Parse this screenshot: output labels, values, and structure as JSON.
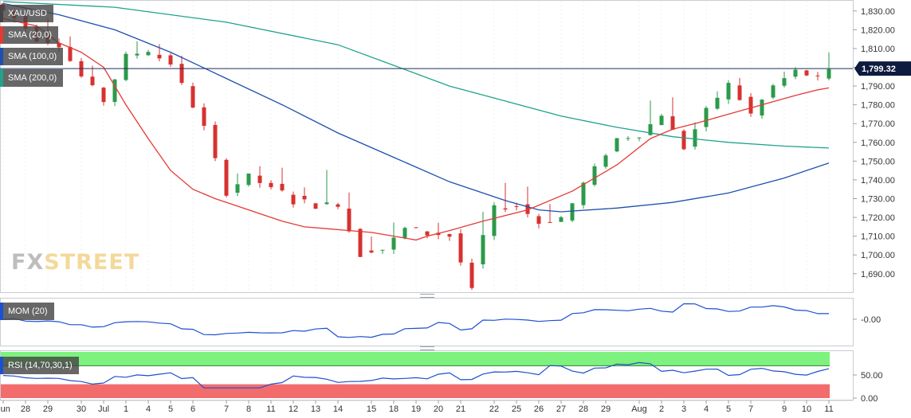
{
  "symbol": "XAU/USD",
  "indicators": {
    "sma20": {
      "label": "SMA (20,0)",
      "color": "#e53935"
    },
    "sma100": {
      "label": "SMA (100,0)",
      "color": "#1e4fb0"
    },
    "sma200": {
      "label": "SMA (200,0)",
      "color": "#1fa38a"
    },
    "mom": {
      "label": "MOM (20)",
      "color": "#1c4fd1"
    },
    "rsi": {
      "label": "RSI (14,70,30,1)",
      "color": "#1c4fd1"
    }
  },
  "current_price": "1,799.32",
  "watermark": {
    "part1": "FX",
    "part2": "STREET"
  },
  "chart_data": {
    "type": "candlestick",
    "price_axis": {
      "ylim": [
        1681,
        1835
      ],
      "ticks": [
        1690,
        1700,
        1710,
        1720,
        1730,
        1740,
        1750,
        1760,
        1770,
        1780,
        1790,
        1800,
        1810,
        1820,
        1830
      ],
      "tick_labels": [
        "1,690.00",
        "1,700.00",
        "1,710.00",
        "1,720.00",
        "1,730.00",
        "1,740.00",
        "1,750.00",
        "1,760.00",
        "1,770.00",
        "1,780.00",
        "1,790.00",
        "1,800.00",
        "1,810.00",
        "1,820.00",
        "1,830.00"
      ]
    },
    "current_price": 1799.32,
    "x_labels": [
      "Jun",
      "28",
      "29",
      "30",
      "Jul",
      "1",
      "4",
      "5",
      "6",
      "7",
      "8",
      "11",
      "12",
      "13",
      "14",
      "15",
      "18",
      "19",
      "20",
      "21",
      "22",
      "25",
      "26",
      "27",
      "28",
      "29",
      "Aug",
      "2",
      "3",
      "4",
      "5",
      "7",
      "9",
      "10",
      "11"
    ],
    "days": [
      {
        "o": 1834,
        "h": 1835,
        "c": 1826
      },
      {
        "o": 1827,
        "h": 1831,
        "c": 1815
      },
      {
        "o": 1816,
        "h": 1826,
        "c": 1812
      },
      {
        "o": 1812,
        "h": 1816,
        "c": 1795
      },
      {
        "o": 1796,
        "h": 1802,
        "c": 1782
      },
      {
        "o": 1782,
        "h": 1808,
        "c": 1806
      },
      {
        "o": 1806,
        "h": 1815,
        "c": 1809
      },
      {
        "o": 1808,
        "h": 1813,
        "c": 1802
      },
      {
        "o": 1802,
        "h": 1806,
        "c": 1768
      },
      {
        "o": 1768,
        "h": 1770,
        "c": 1733
      },
      {
        "o": 1734,
        "h": 1747,
        "c": 1742
      },
      {
        "o": 1742,
        "h": 1748,
        "c": 1735
      },
      {
        "o": 1739,
        "h": 1747,
        "c": 1728
      },
      {
        "o": 1731,
        "h": 1736,
        "c": 1726
      },
      {
        "o": 1727,
        "h": 1746,
        "c": 1727
      },
      {
        "o": 1726,
        "h": 1736,
        "c": 1700
      },
      {
        "o": 1702,
        "h": 1711,
        "c": 1703
      },
      {
        "o": 1703,
        "h": 1723,
        "c": 1714
      },
      {
        "o": 1716,
        "h": 1717,
        "c": 1711
      },
      {
        "o": 1712,
        "h": 1717,
        "c": 1710
      },
      {
        "o": 1711,
        "h": 1712,
        "c": 1681
      },
      {
        "o": 1695,
        "h": 1738,
        "c": 1725
      },
      {
        "o": 1725,
        "h": 1740,
        "c": 1726
      },
      {
        "o": 1727,
        "h": 1736,
        "c": 1717
      },
      {
        "o": 1717,
        "h": 1730,
        "c": 1720
      },
      {
        "o": 1717,
        "h": 1740,
        "c": 1738
      },
      {
        "o": 1738,
        "h": 1761,
        "c": 1762
      },
      {
        "o": 1762,
        "h": 1767,
        "c": 1764
      },
      {
        "o": 1764,
        "h": 1788,
        "c": 1775
      },
      {
        "o": 1775,
        "h": 1785,
        "c": 1757
      },
      {
        "o": 1757,
        "h": 1781,
        "c": 1777
      },
      {
        "o": 1777,
        "h": 1795,
        "c": 1791
      },
      {
        "o": 1791,
        "h": 1795,
        "c": 1775
      },
      {
        "o": 1775,
        "h": 1791,
        "c": 1790
      },
      {
        "o": 1790,
        "h": 1802,
        "c": 1798
      },
      {
        "o": 1798,
        "h": 1801,
        "c": 1794
      },
      {
        "o": 1794,
        "h": 1808,
        "c": 1799
      }
    ],
    "sma20": [
      [
        0,
        1826
      ],
      [
        3,
        1822
      ],
      [
        5,
        1813
      ],
      [
        7,
        1808
      ],
      [
        9,
        1800
      ],
      [
        11,
        1780
      ],
      [
        13,
        1762
      ],
      [
        15,
        1745
      ],
      [
        17,
        1735
      ],
      [
        19,
        1730
      ],
      [
        21,
        1726
      ],
      [
        23,
        1722
      ],
      [
        25,
        1718
      ],
      [
        27,
        1715
      ],
      [
        29,
        1714
      ],
      [
        31,
        1713
      ],
      [
        33,
        1712
      ],
      [
        35,
        1710
      ],
      [
        37,
        1708
      ],
      [
        38,
        1710
      ],
      [
        40,
        1713
      ],
      [
        43,
        1718
      ],
      [
        47,
        1724
      ],
      [
        51,
        1734
      ],
      [
        55,
        1748
      ],
      [
        58,
        1762
      ],
      [
        60,
        1767
      ],
      [
        62,
        1770
      ],
      [
        65,
        1775
      ],
      [
        68,
        1780
      ],
      [
        71,
        1785
      ],
      [
        73,
        1788
      ],
      [
        74,
        1789
      ]
    ],
    "sma100": [
      [
        0,
        1834
      ],
      [
        5,
        1828
      ],
      [
        10,
        1820
      ],
      [
        15,
        1808
      ],
      [
        20,
        1794
      ],
      [
        25,
        1780
      ],
      [
        30,
        1765
      ],
      [
        35,
        1752
      ],
      [
        40,
        1739
      ],
      [
        45,
        1729
      ],
      [
        48,
        1724
      ],
      [
        50,
        1723
      ],
      [
        55,
        1725
      ],
      [
        60,
        1728
      ],
      [
        65,
        1733
      ],
      [
        70,
        1741
      ],
      [
        74,
        1749
      ]
    ],
    "sma200": [
      [
        0,
        1835
      ],
      [
        10,
        1832
      ],
      [
        20,
        1824
      ],
      [
        30,
        1812
      ],
      [
        35,
        1801
      ],
      [
        40,
        1790
      ],
      [
        45,
        1782
      ],
      [
        50,
        1774
      ],
      [
        55,
        1768
      ],
      [
        60,
        1763
      ],
      [
        65,
        1760
      ],
      [
        70,
        1758
      ],
      [
        74,
        1757
      ]
    ],
    "mom": {
      "ylim": [
        -0.1,
        0.08
      ],
      "ticks": [
        0
      ],
      "tick_labels": [
        "-0.00"
      ]
    },
    "rsi": {
      "ylim": [
        0,
        100
      ],
      "overbought": 70,
      "oversold": 30,
      "ticks": [
        50,
        0
      ],
      "tick_labels": [
        "50.00",
        "0.00"
      ]
    }
  }
}
